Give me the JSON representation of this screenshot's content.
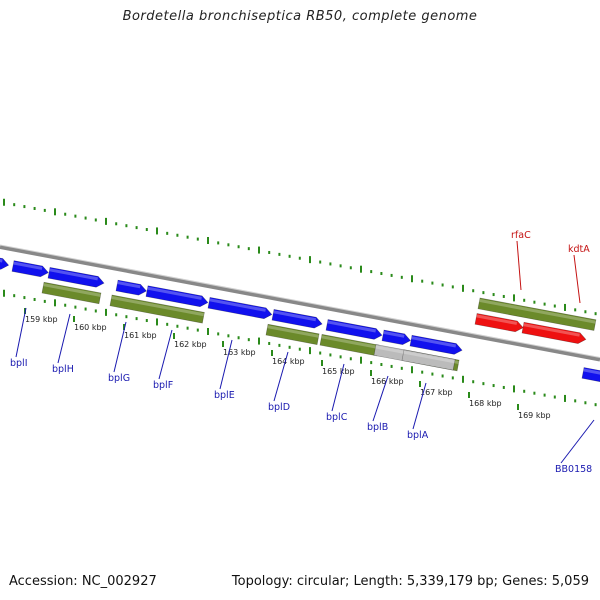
{
  "title": "Bordetella bronchiseptica RB50, complete genome",
  "footer": {
    "accession": "Accession: NC_002927",
    "stats": "Topology: circular; Length: 5,339,179 bp; Genes: 5,059"
  },
  "colors": {
    "forward_gene": "#1111ee",
    "reverse_gene": "#6b8a2a",
    "highlight_gene": "#ee1111",
    "pseudo_gene": "#bbbbbb",
    "backbone": "#888888",
    "ticks": "#2a8a1a",
    "gene_label_blue": "#1a1ab0",
    "gene_label_red": "#c41212"
  },
  "scale_labels": [
    "159 kbp",
    "160 kbp",
    "161 kbp",
    "162 kbp",
    "163 kbp",
    "164 kbp",
    "165 kbp",
    "166 kbp",
    "167 kbp",
    "168 kbp",
    "169 kbp"
  ],
  "gene_labels": [
    {
      "name": "bplI",
      "color": "blue"
    },
    {
      "name": "bplH",
      "color": "blue"
    },
    {
      "name": "bplG",
      "color": "blue"
    },
    {
      "name": "bplF",
      "color": "blue"
    },
    {
      "name": "bplE",
      "color": "blue"
    },
    {
      "name": "bplD",
      "color": "blue"
    },
    {
      "name": "bplC",
      "color": "blue"
    },
    {
      "name": "bplB",
      "color": "blue"
    },
    {
      "name": "bplA",
      "color": "blue"
    },
    {
      "name": "BB0158",
      "color": "blue"
    },
    {
      "name": "rfaC",
      "color": "red"
    },
    {
      "name": "kdtA",
      "color": "red"
    }
  ]
}
